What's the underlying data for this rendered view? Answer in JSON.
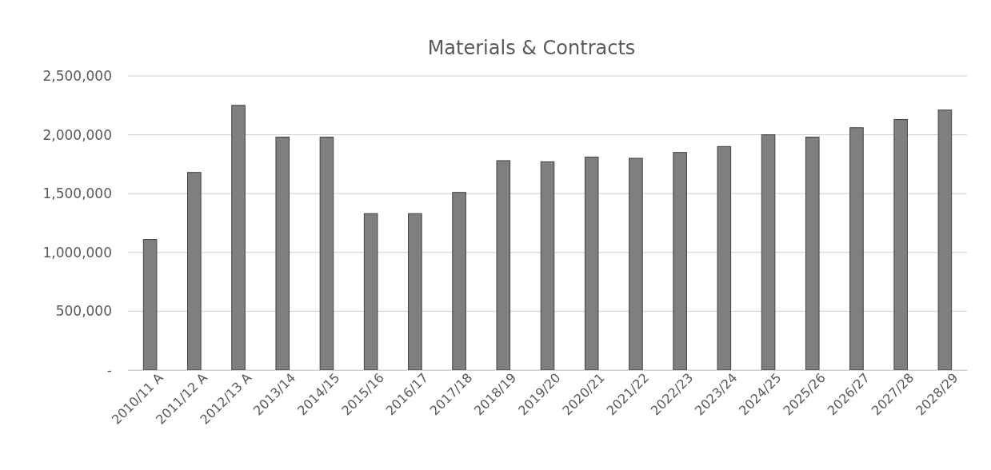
{
  "chart_data": {
    "type": "bar",
    "title": "Materials & Contracts",
    "categories": [
      "2010/11 A",
      "2011/12 A",
      "2012/13 A",
      "2013/14",
      "2014/15",
      "2015/16",
      "2016/17",
      "2017/18",
      "2018/19",
      "2019/20",
      "2020/21",
      "2021/22",
      "2022/23",
      "2023/24",
      "2024/25",
      "2025/26",
      "2026/27",
      "2027/28",
      "2028/29"
    ],
    "values": [
      1110000,
      1680000,
      2250000,
      1980000,
      1980000,
      1330000,
      1330000,
      1510000,
      1780000,
      1770000,
      1810000,
      1800000,
      1850000,
      1900000,
      2000000,
      1980000,
      2060000,
      2130000,
      2210000
    ],
    "color": "#7f7f7f",
    "ylim": [
      0,
      2500000
    ],
    "yticks": [
      {
        "value": 0,
        "label": "-"
      },
      {
        "value": 500000,
        "label": "500,000"
      },
      {
        "value": 1000000,
        "label": "1,000,000"
      },
      {
        "value": 1500000,
        "label": "1,500,000"
      },
      {
        "value": 2000000,
        "label": "2,000,000"
      },
      {
        "value": 2500000,
        "label": "2,500,000"
      }
    ],
    "grid": "y"
  }
}
